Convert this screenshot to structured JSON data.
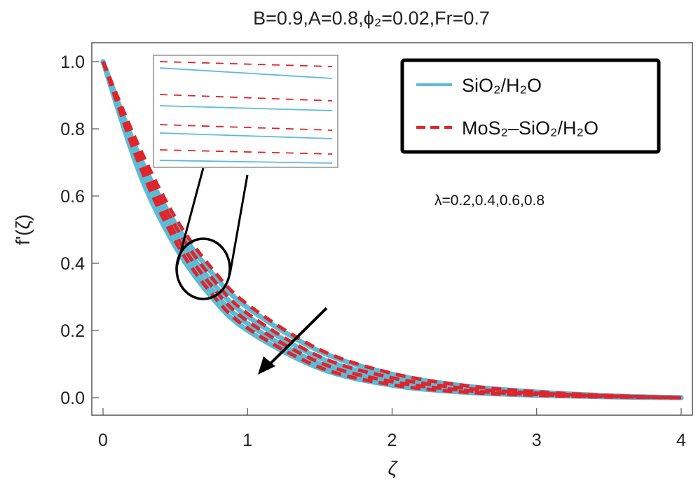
{
  "chart_data": {
    "type": "line",
    "title": "B=0.9,A=0.8,ϕ₂=0.02,Fr=0.7",
    "xlabel": "ζ",
    "ylabel": "f'(ζ)",
    "xlim": [
      0,
      4
    ],
    "ylim": [
      0,
      1.0
    ],
    "xticks": [
      "0",
      "1",
      "2",
      "3",
      "4"
    ],
    "yticks": [
      "0.0",
      "0.2",
      "0.4",
      "0.6",
      "0.8",
      "1.0"
    ],
    "grid": false,
    "legend_position": "top-right",
    "x": [
      0,
      0.25,
      0.5,
      0.75,
      1.0,
      1.5,
      2.0,
      2.5,
      3.0,
      3.5,
      4.0
    ],
    "groups": [
      {
        "lambda": 0.2,
        "values": [
          1.0,
          0.721,
          0.518,
          0.373,
          0.268,
          0.138,
          0.07,
          0.035,
          0.017,
          0.006,
          0.0
        ]
      },
      {
        "lambda": 0.4,
        "values": [
          1.0,
          0.704,
          0.494,
          0.346,
          0.242,
          0.118,
          0.057,
          0.027,
          0.013,
          0.005,
          0.0
        ]
      },
      {
        "lambda": 0.6,
        "values": [
          1.0,
          0.687,
          0.471,
          0.322,
          0.22,
          0.101,
          0.046,
          0.021,
          0.009,
          0.003,
          0.0
        ]
      },
      {
        "lambda": 0.8,
        "values": [
          1.0,
          0.671,
          0.45,
          0.3,
          0.2,
          0.087,
          0.037,
          0.016,
          0.007,
          0.002,
          0.0
        ]
      }
    ],
    "series": [
      {
        "name": "SiO₂/H₂O",
        "style": "solid",
        "color": "#5bbcd6"
      },
      {
        "name": "MoS₂–SiO₂/H₂O",
        "style": "dashed",
        "color": "#e0242c"
      }
    ],
    "annotation": "λ=0.2,0.4,0.6,0.8",
    "arrow_direction": "increasing λ, curves decrease"
  }
}
